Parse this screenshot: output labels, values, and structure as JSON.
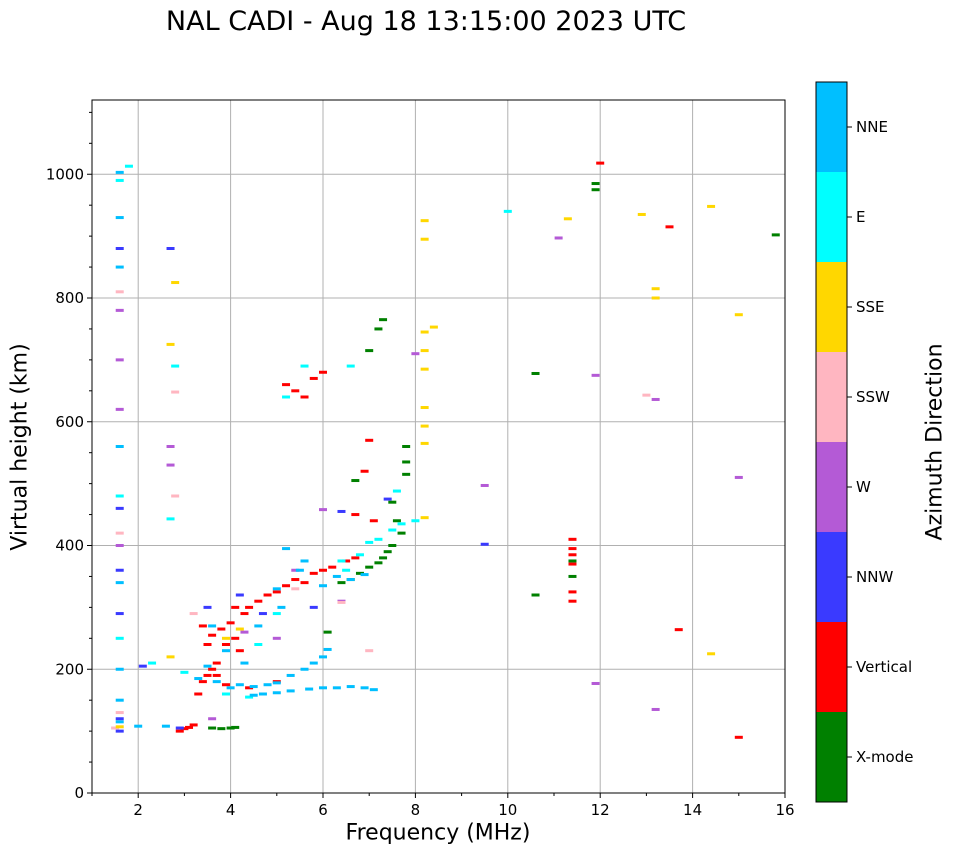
{
  "chart_data": {
    "type": "scatter",
    "title": "NAL CADI - Aug 18 13:15:00 2023 UTC",
    "xlabel": "Frequency (MHz)",
    "ylabel": "Virtual height (km)",
    "xlim": [
      1,
      16
    ],
    "ylim": [
      0,
      1120
    ],
    "xticks": [
      2,
      4,
      6,
      8,
      10,
      12,
      14,
      16
    ],
    "yticks": [
      0,
      200,
      400,
      600,
      800,
      1000
    ],
    "grid": true,
    "colorbar": {
      "label": "Azimuth Direction",
      "categories": [
        {
          "name": "X-mode",
          "color": "#008000"
        },
        {
          "name": "Vertical",
          "color": "#ff0000"
        },
        {
          "name": "NNW",
          "color": "#3a3aff"
        },
        {
          "name": "W",
          "color": "#b45ad6"
        },
        {
          "name": "SSW",
          "color": "#ffb6c1"
        },
        {
          "name": "SSE",
          "color": "#ffd700"
        },
        {
          "name": "E",
          "color": "#00ffff"
        },
        {
          "name": "NNE",
          "color": "#00bfff"
        }
      ]
    },
    "series": [
      {
        "name": "X-mode",
        "points": [
          [
            3.6,
            105
          ],
          [
            3.8,
            104
          ],
          [
            4.0,
            105
          ],
          [
            4.1,
            106
          ],
          [
            7.2,
            750
          ],
          [
            7.3,
            765
          ],
          [
            7.0,
            715
          ],
          [
            6.7,
            505
          ],
          [
            7.5,
            470
          ],
          [
            7.6,
            440
          ],
          [
            7.7,
            420
          ],
          [
            7.5,
            400
          ],
          [
            7.4,
            390
          ],
          [
            7.3,
            380
          ],
          [
            7.2,
            372
          ],
          [
            7.0,
            365
          ],
          [
            6.8,
            355
          ],
          [
            6.6,
            345
          ],
          [
            6.4,
            340
          ],
          [
            7.8,
            560
          ],
          [
            7.8,
            535
          ],
          [
            7.8,
            515
          ],
          [
            6.1,
            260
          ],
          [
            10.6,
            678
          ],
          [
            10.6,
            320
          ],
          [
            11.4,
            350
          ],
          [
            11.4,
            375
          ],
          [
            11.9,
            985
          ],
          [
            11.9,
            975
          ],
          [
            15.8,
            902
          ]
        ]
      },
      {
        "name": "Vertical",
        "points": [
          [
            2.9,
            100
          ],
          [
            3.0,
            104
          ],
          [
            3.1,
            106
          ],
          [
            3.2,
            110
          ],
          [
            3.4,
            180
          ],
          [
            3.5,
            190
          ],
          [
            3.6,
            200
          ],
          [
            3.7,
            210
          ],
          [
            3.3,
            160
          ],
          [
            3.5,
            240
          ],
          [
            3.6,
            255
          ],
          [
            3.8,
            265
          ],
          [
            4.0,
            275
          ],
          [
            4.1,
            250
          ],
          [
            4.3,
            290
          ],
          [
            4.4,
            300
          ],
          [
            4.6,
            310
          ],
          [
            4.8,
            320
          ],
          [
            5.0,
            325
          ],
          [
            5.2,
            335
          ],
          [
            5.4,
            345
          ],
          [
            5.6,
            340
          ],
          [
            5.8,
            355
          ],
          [
            6.0,
            360
          ],
          [
            6.2,
            365
          ],
          [
            6.5,
            375
          ],
          [
            6.7,
            380
          ],
          [
            3.9,
            240
          ],
          [
            4.2,
            230
          ],
          [
            3.4,
            270
          ],
          [
            4.1,
            300
          ],
          [
            3.7,
            190
          ],
          [
            3.9,
            175
          ],
          [
            4.4,
            170
          ],
          [
            5.0,
            180
          ],
          [
            5.6,
            640
          ],
          [
            5.4,
            650
          ],
          [
            5.2,
            660
          ],
          [
            5.8,
            670
          ],
          [
            6.0,
            680
          ],
          [
            7.0,
            570
          ],
          [
            6.9,
            520
          ],
          [
            6.7,
            450
          ],
          [
            7.1,
            440
          ],
          [
            11.4,
            410
          ],
          [
            11.4,
            395
          ],
          [
            11.4,
            385
          ],
          [
            11.4,
            370
          ],
          [
            11.4,
            325
          ],
          [
            11.4,
            310
          ],
          [
            13.7,
            264
          ],
          [
            15.0,
            90
          ],
          [
            12.0,
            1018
          ],
          [
            13.5,
            915
          ]
        ]
      },
      {
        "name": "NNW",
        "points": [
          [
            1.6,
            100
          ],
          [
            1.6,
            120
          ],
          [
            1.6,
            290
          ],
          [
            2.1,
            205
          ],
          [
            3.5,
            300
          ],
          [
            4.2,
            320
          ],
          [
            4.7,
            290
          ],
          [
            5.8,
            300
          ],
          [
            6.4,
            455
          ],
          [
            9.5,
            402
          ],
          [
            1.6,
            880
          ],
          [
            2.7,
            880
          ],
          [
            1.6,
            360
          ],
          [
            1.6,
            460
          ],
          [
            7.4,
            475
          ],
          [
            2.9,
            105
          ]
        ]
      },
      {
        "name": "W",
        "points": [
          [
            1.6,
            400
          ],
          [
            1.6,
            620
          ],
          [
            1.6,
            700
          ],
          [
            1.6,
            780
          ],
          [
            2.7,
            560
          ],
          [
            2.7,
            530
          ],
          [
            6.0,
            458
          ],
          [
            5.0,
            250
          ],
          [
            4.3,
            260
          ],
          [
            6.4,
            310
          ],
          [
            8.0,
            710
          ],
          [
            9.5,
            497
          ],
          [
            11.1,
            897
          ],
          [
            11.9,
            675
          ],
          [
            13.2,
            636
          ],
          [
            15.0,
            510
          ],
          [
            11.9,
            177
          ],
          [
            13.2,
            135
          ],
          [
            5.4,
            360
          ],
          [
            3.6,
            120
          ]
        ]
      },
      {
        "name": "SSW",
        "points": [
          [
            1.6,
            130
          ],
          [
            1.6,
            420
          ],
          [
            1.6,
            810
          ],
          [
            2.8,
            480
          ],
          [
            2.8,
            648
          ],
          [
            6.4,
            308
          ],
          [
            7.0,
            230
          ],
          [
            13.0,
            643
          ],
          [
            1.5,
            105
          ],
          [
            5.4,
            330
          ],
          [
            3.2,
            290
          ]
        ]
      },
      {
        "name": "SSE",
        "points": [
          [
            1.6,
            107
          ],
          [
            2.7,
            725
          ],
          [
            2.8,
            825
          ],
          [
            8.2,
            925
          ],
          [
            8.2,
            895
          ],
          [
            8.2,
            745
          ],
          [
            8.4,
            753
          ],
          [
            8.2,
            715
          ],
          [
            8.2,
            685
          ],
          [
            8.2,
            623
          ],
          [
            8.2,
            593
          ],
          [
            8.2,
            565
          ],
          [
            8.2,
            445
          ],
          [
            11.3,
            928
          ],
          [
            12.9,
            935
          ],
          [
            13.2,
            815
          ],
          [
            13.2,
            800
          ],
          [
            14.4,
            948
          ],
          [
            14.4,
            225
          ],
          [
            15.0,
            773
          ],
          [
            2.7,
            220
          ],
          [
            4.2,
            265
          ],
          [
            3.9,
            250
          ]
        ]
      },
      {
        "name": "E",
        "points": [
          [
            1.6,
            250
          ],
          [
            1.6,
            480
          ],
          [
            1.6,
            990
          ],
          [
            1.8,
            1013
          ],
          [
            2.7,
            443
          ],
          [
            2.8,
            690
          ],
          [
            3.9,
            160
          ],
          [
            4.4,
            155
          ],
          [
            5.2,
            640
          ],
          [
            6.5,
            360
          ],
          [
            6.8,
            385
          ],
          [
            7.0,
            405
          ],
          [
            7.2,
            410
          ],
          [
            7.5,
            425
          ],
          [
            7.7,
            435
          ],
          [
            6.4,
            375
          ],
          [
            7.6,
            488
          ],
          [
            8.0,
            440
          ],
          [
            10.0,
            940
          ],
          [
            5.6,
            690
          ],
          [
            6.6,
            690
          ],
          [
            3.0,
            195
          ],
          [
            2.3,
            210
          ],
          [
            4.6,
            240
          ],
          [
            5.0,
            290
          ]
        ]
      },
      {
        "name": "NNE",
        "points": [
          [
            1.6,
            115
          ],
          [
            1.6,
            150
          ],
          [
            1.6,
            200
          ],
          [
            1.6,
            340
          ],
          [
            1.6,
            560
          ],
          [
            1.6,
            850
          ],
          [
            1.6,
            930
          ],
          [
            1.6,
            1003
          ],
          [
            3.3,
            185
          ],
          [
            3.5,
            205
          ],
          [
            3.7,
            180
          ],
          [
            4.0,
            170
          ],
          [
            4.2,
            175
          ],
          [
            4.5,
            172
          ],
          [
            4.8,
            175
          ],
          [
            5.0,
            178
          ],
          [
            5.3,
            190
          ],
          [
            5.6,
            200
          ],
          [
            5.8,
            210
          ],
          [
            6.0,
            220
          ],
          [
            6.1,
            232
          ],
          [
            4.5,
            158
          ],
          [
            4.7,
            160
          ],
          [
            5.0,
            162
          ],
          [
            5.3,
            165
          ],
          [
            5.7,
            168
          ],
          [
            6.0,
            170
          ],
          [
            6.3,
            170
          ],
          [
            6.6,
            172
          ],
          [
            6.9,
            170
          ],
          [
            7.1,
            167
          ],
          [
            6.6,
            345
          ],
          [
            6.9,
            353
          ],
          [
            5.2,
            395
          ],
          [
            5.6,
            375
          ],
          [
            5.5,
            360
          ],
          [
            3.6,
            270
          ],
          [
            3.9,
            230
          ],
          [
            4.3,
            210
          ],
          [
            4.6,
            270
          ],
          [
            5.1,
            300
          ],
          [
            6.0,
            335
          ],
          [
            6.3,
            350
          ],
          [
            5.0,
            330
          ],
          [
            2.6,
            108
          ],
          [
            2.0,
            108
          ]
        ]
      }
    ]
  }
}
